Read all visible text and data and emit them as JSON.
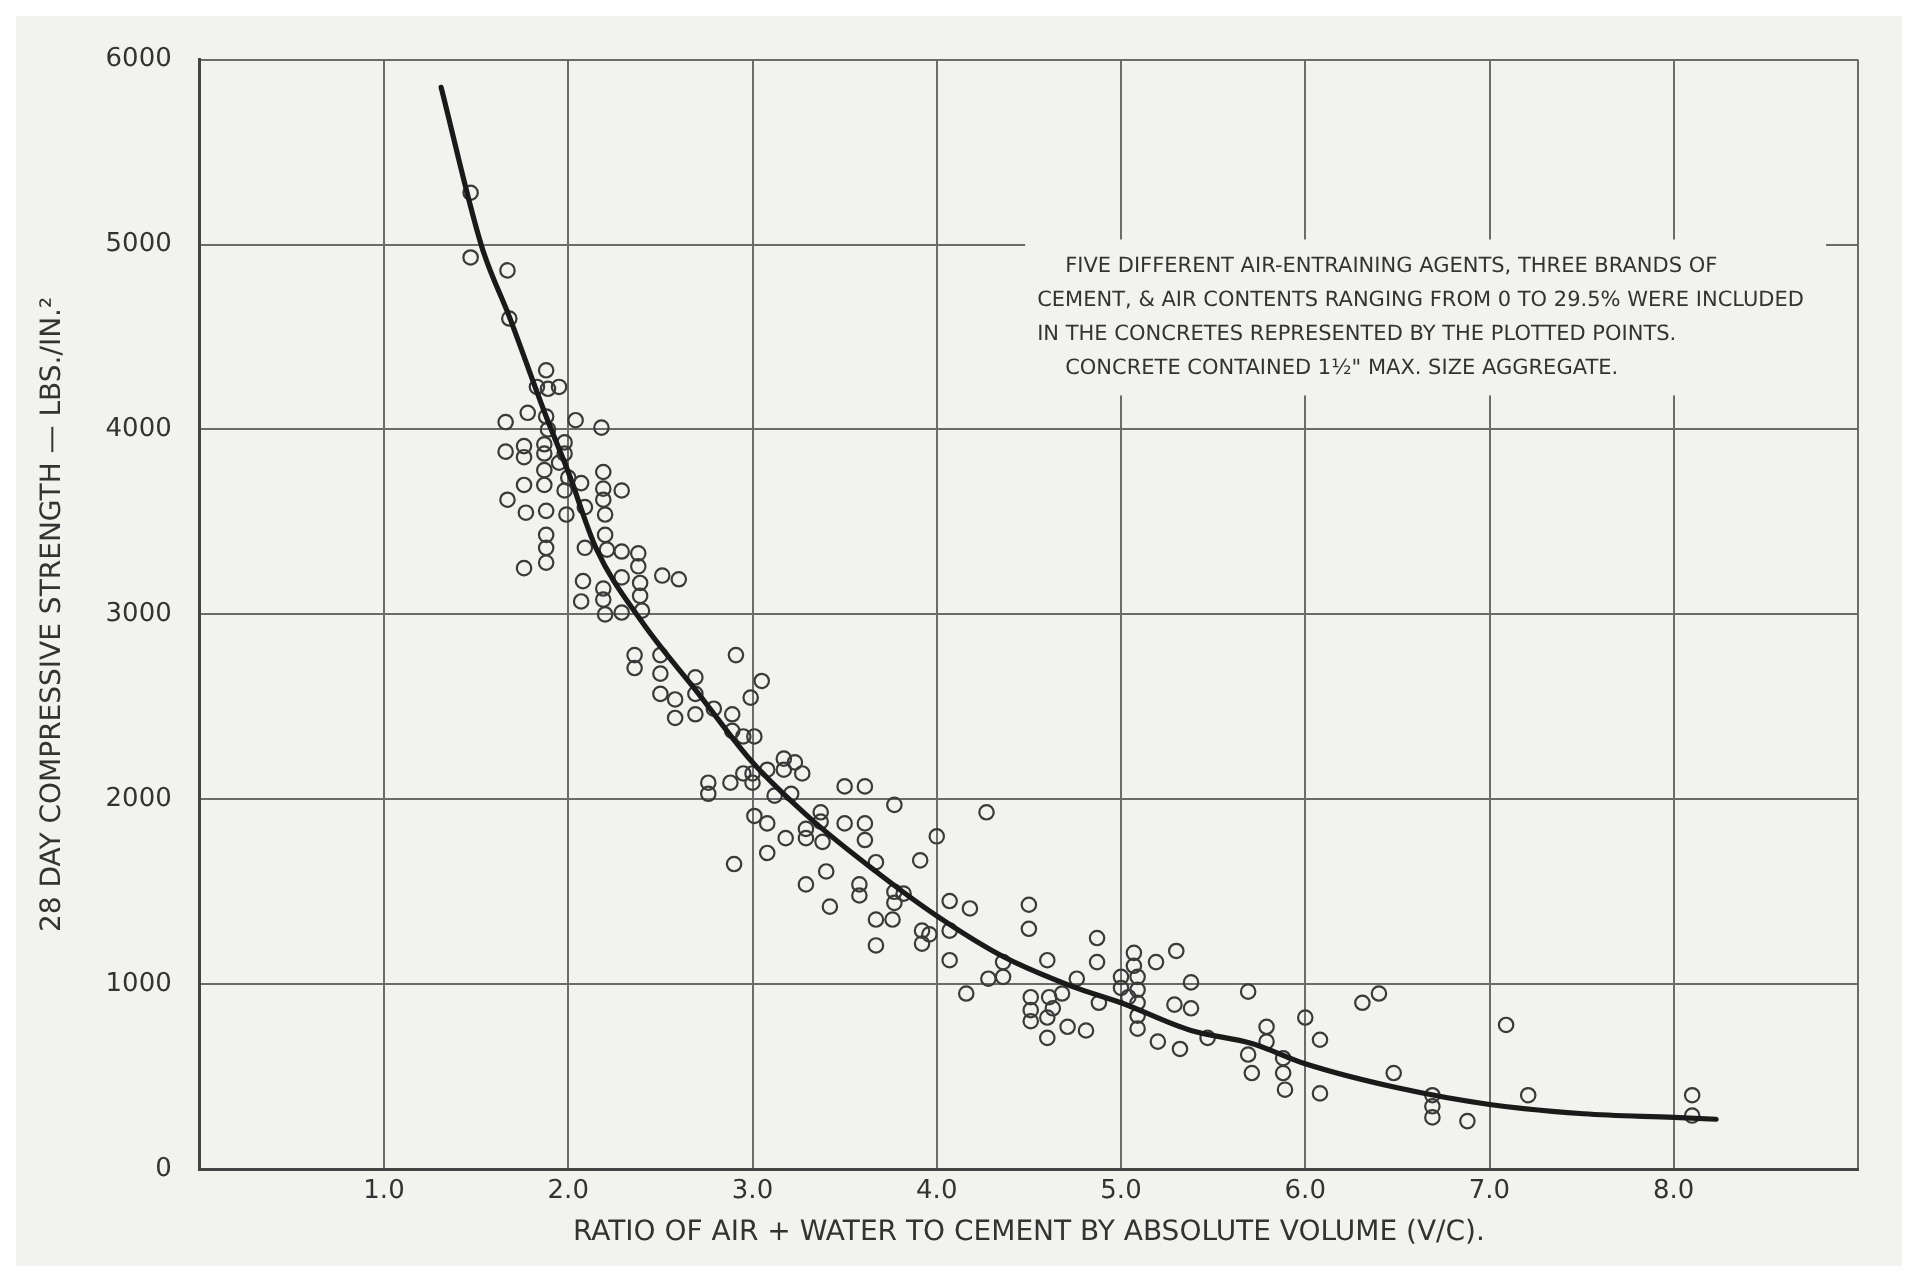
{
  "chart_data": {
    "type": "scatter",
    "xlabel": "RATIO OF AIR + WATER TO CEMENT BY ABSOLUTE VOLUME (V/C).",
    "ylabel": "28 DAY COMPRESSIVE STRENGTH — LBS./IN.²",
    "xlim": [
      0,
      9
    ],
    "ylim": [
      0,
      6000
    ],
    "xticks": [
      {
        "value": 0,
        "label": null
      },
      {
        "value": 1,
        "label": "1.0"
      },
      {
        "value": 2,
        "label": "2.0"
      },
      {
        "value": 3,
        "label": "3.0"
      },
      {
        "value": 4,
        "label": "4.0"
      },
      {
        "value": 5,
        "label": "5.0"
      },
      {
        "value": 6,
        "label": "6.0"
      },
      {
        "value": 7,
        "label": "7.0"
      },
      {
        "value": 8,
        "label": "8.0"
      },
      {
        "value": 9,
        "label": null
      }
    ],
    "yticks": [
      0,
      1000,
      2000,
      3000,
      4000,
      5000,
      6000
    ],
    "grid": true,
    "legend": false,
    "marker": "circle",
    "annotations": [
      "FIVE DIFFERENT AIR-ENTRAINING AGENTS, THREE BRANDS OF CEMENT, & AIR CONTENTS RANGING FROM 0 TO 29.5% WERE INCLUDED IN THE CONCRETES REPRESENTED BY THE PLOTTED POINTS.",
      "CONCRETE CONTAINED 1½\" MAX. SIZE AGGREGATE."
    ],
    "series": [
      {
        "type": "scatter",
        "color": "#3a3a3a",
        "x": [
          1.47,
          1.47,
          1.67,
          1.68,
          1.88,
          1.83,
          1.89,
          1.95,
          1.78,
          1.66,
          1.88,
          1.89,
          2.04,
          2.18,
          1.66,
          1.76,
          1.76,
          1.87,
          1.87,
          1.98,
          1.98,
          1.95,
          1.87,
          2.0,
          2.07,
          2.19,
          2.19,
          2.29,
          1.76,
          1.87,
          1.98,
          2.19,
          1.67,
          1.77,
          1.88,
          1.99,
          2.09,
          2.2,
          2.2,
          1.88,
          1.88,
          1.88,
          1.76,
          2.09,
          2.21,
          2.29,
          2.38,
          2.38,
          2.29,
          2.51,
          2.6,
          2.08,
          2.39,
          2.19,
          2.07,
          2.19,
          2.39,
          2.2,
          2.29,
          2.4,
          2.36,
          2.36,
          2.5,
          2.5,
          2.5,
          2.58,
          2.58,
          2.69,
          2.69,
          2.69,
          2.91,
          2.79,
          2.89,
          2.89,
          2.95,
          3.01,
          2.99,
          3.05,
          2.95,
          3.0,
          3.0,
          3.08,
          2.76,
          2.76,
          2.88,
          3.17,
          3.17,
          3.23,
          3.27,
          3.12,
          3.21,
          3.01,
          3.08,
          3.08,
          2.9,
          3.18,
          3.29,
          3.29,
          3.37,
          3.37,
          3.38,
          3.5,
          3.61,
          3.5,
          3.61,
          3.61,
          3.77,
          3.67,
          3.4,
          3.29,
          3.58,
          3.58,
          3.42,
          3.77,
          3.82,
          3.77,
          3.67,
          3.76,
          3.67,
          3.91,
          4.0,
          4.27,
          3.92,
          3.96,
          3.92,
          4.07,
          4.18,
          4.07,
          4.07,
          4.16,
          4.28,
          4.36,
          4.36,
          4.5,
          4.5,
          4.6,
          4.51,
          4.51,
          4.51,
          4.61,
          4.63,
          4.68,
          4.76,
          4.6,
          4.6,
          4.71,
          4.81,
          4.87,
          4.87,
          4.88,
          5.0,
          5.0,
          5.07,
          5.07,
          5.09,
          5.09,
          5.09,
          5.09,
          5.09,
          5.04,
          5.19,
          5.3,
          5.38,
          5.29,
          5.38,
          5.2,
          5.32,
          5.47,
          5.69,
          5.69,
          5.71,
          5.79,
          5.79,
          5.88,
          5.88,
          5.89,
          6.0,
          6.08,
          6.08,
          6.31,
          6.4,
          6.48,
          6.69,
          6.69,
          6.69,
          6.88,
          7.09,
          7.21,
          8.1,
          8.1
        ],
        "values": [
          5280,
          4930,
          4860,
          4600,
          4320,
          4230,
          4220,
          4230,
          4090,
          4040,
          4070,
          4000,
          4050,
          4010,
          3880,
          3910,
          3850,
          3920,
          3870,
          3930,
          3870,
          3820,
          3780,
          3740,
          3710,
          3770,
          3680,
          3670,
          3700,
          3700,
          3670,
          3620,
          3620,
          3550,
          3560,
          3540,
          3580,
          3540,
          3430,
          3430,
          3360,
          3280,
          3250,
          3360,
          3350,
          3340,
          3330,
          3260,
          3200,
          3210,
          3190,
          3180,
          3170,
          3140,
          3070,
          3080,
          3100,
          3000,
          3010,
          3020,
          2780,
          2710,
          2780,
          2680,
          2570,
          2540,
          2440,
          2660,
          2570,
          2460,
          2780,
          2490,
          2460,
          2370,
          2340,
          2340,
          2550,
          2640,
          2140,
          2140,
          2090,
          2160,
          2090,
          2030,
          2090,
          2220,
          2160,
          2200,
          2140,
          2020,
          2030,
          1910,
          1870,
          1710,
          1650,
          1790,
          1840,
          1790,
          1930,
          1880,
          1770,
          2070,
          2070,
          1870,
          1870,
          1780,
          1970,
          1660,
          1610,
          1540,
          1540,
          1480,
          1420,
          1500,
          1490,
          1440,
          1350,
          1350,
          1210,
          1670,
          1800,
          1930,
          1290,
          1270,
          1220,
          1450,
          1410,
          1290,
          1130,
          950,
          1030,
          1120,
          1040,
          1430,
          1300,
          1130,
          930,
          860,
          800,
          930,
          870,
          950,
          1030,
          820,
          710,
          770,
          750,
          1250,
          1120,
          900,
          1040,
          980,
          1170,
          1100,
          1040,
          970,
          900,
          830,
          760,
          930,
          1120,
          1180,
          1010,
          890,
          870,
          690,
          650,
          710,
          960,
          620,
          520,
          770,
          690,
          600,
          520,
          430,
          820,
          700,
          410,
          900,
          950,
          520,
          400,
          340,
          280,
          260,
          780,
          400,
          400,
          290
        ]
      },
      {
        "type": "line",
        "color": "#1a1a1a",
        "marker": "none",
        "x": [
          1.31,
          1.53,
          1.68,
          1.88,
          2.0,
          2.15,
          2.4,
          2.7,
          3.0,
          3.31,
          3.67,
          4.0,
          4.36,
          4.73,
          5.0,
          5.38,
          5.71,
          6.0,
          6.5,
          7.0,
          7.51,
          8.0,
          8.23
        ],
        "values": [
          5850,
          4990,
          4610,
          4070,
          3770,
          3360,
          2960,
          2580,
          2200,
          1900,
          1610,
          1370,
          1150,
          990,
          900,
          750,
          680,
          570,
          440,
          350,
          300,
          280,
          270
        ]
      }
    ]
  }
}
